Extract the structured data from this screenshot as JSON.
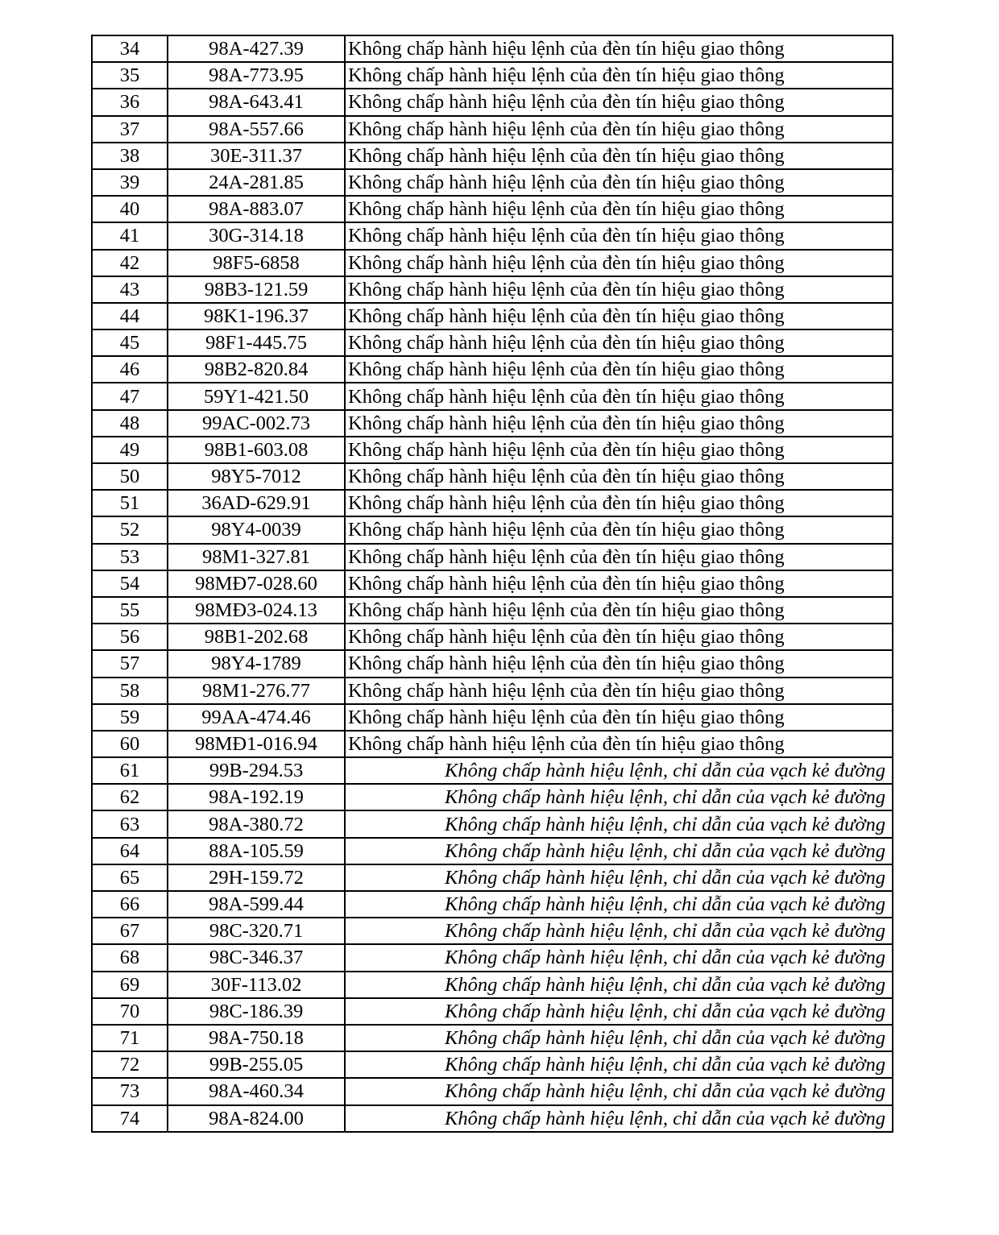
{
  "violations": {
    "signal": "Không chấp hành hiệu lệnh của đèn tín hiệu giao thông",
    "marking": "Không chấp hành hiệu lệnh, chỉ dẫn của vạch kẻ đường"
  },
  "rows": [
    {
      "no": "34",
      "plate": "98A-427.39",
      "violation": "Không chấp hành hiệu lệnh của đèn tín hiệu giao thông",
      "italic": false
    },
    {
      "no": "35",
      "plate": "98A-773.95",
      "violation": "Không chấp hành hiệu lệnh của đèn tín hiệu giao thông",
      "italic": false
    },
    {
      "no": "36",
      "plate": "98A-643.41",
      "violation": "Không chấp hành hiệu lệnh của đèn tín hiệu giao thông",
      "italic": false
    },
    {
      "no": "37",
      "plate": "98A-557.66",
      "violation": "Không chấp hành hiệu lệnh của đèn tín hiệu giao thông",
      "italic": false
    },
    {
      "no": "38",
      "plate": "30E-311.37",
      "violation": "Không chấp hành hiệu lệnh của đèn tín hiệu giao thông",
      "italic": false
    },
    {
      "no": "39",
      "plate": "24A-281.85",
      "violation": "Không chấp hành hiệu lệnh của đèn tín hiệu giao thông",
      "italic": false
    },
    {
      "no": "40",
      "plate": "98A-883.07",
      "violation": "Không chấp hành hiệu lệnh của đèn tín hiệu giao thông",
      "italic": false
    },
    {
      "no": "41",
      "plate": "30G-314.18",
      "violation": "Không chấp hành hiệu lệnh của đèn tín hiệu giao thông",
      "italic": false
    },
    {
      "no": "42",
      "plate": "98F5-6858",
      "violation": "Không chấp hành hiệu lệnh của đèn tín hiệu giao thông",
      "italic": false
    },
    {
      "no": "43",
      "plate": "98B3-121.59",
      "violation": "Không chấp hành hiệu lệnh của đèn tín hiệu giao thông",
      "italic": false
    },
    {
      "no": "44",
      "plate": "98K1-196.37",
      "violation": "Không chấp hành hiệu lệnh của đèn tín hiệu giao thông",
      "italic": false
    },
    {
      "no": "45",
      "plate": "98F1-445.75",
      "violation": "Không chấp hành hiệu lệnh của đèn tín hiệu giao thông",
      "italic": false
    },
    {
      "no": "46",
      "plate": "98B2-820.84",
      "violation": "Không chấp hành hiệu lệnh của đèn tín hiệu giao thông",
      "italic": false
    },
    {
      "no": "47",
      "plate": "59Y1-421.50",
      "violation": "Không chấp hành hiệu lệnh của đèn tín hiệu giao thông",
      "italic": false
    },
    {
      "no": "48",
      "plate": "99AC-002.73",
      "violation": "Không chấp hành hiệu lệnh của đèn tín hiệu giao thông",
      "italic": false
    },
    {
      "no": "49",
      "plate": "98B1-603.08",
      "violation": "Không chấp hành hiệu lệnh của đèn tín hiệu giao thông",
      "italic": false
    },
    {
      "no": "50",
      "plate": "98Y5-7012",
      "violation": "Không chấp hành hiệu lệnh của đèn tín hiệu giao thông",
      "italic": false
    },
    {
      "no": "51",
      "plate": "36AD-629.91",
      "violation": "Không chấp hành hiệu lệnh của đèn tín hiệu giao thông",
      "italic": false
    },
    {
      "no": "52",
      "plate": "98Y4-0039",
      "violation": "Không chấp hành hiệu lệnh của đèn tín hiệu giao thông",
      "italic": false
    },
    {
      "no": "53",
      "plate": "98M1-327.81",
      "violation": "Không chấp hành hiệu lệnh của đèn tín hiệu giao thông",
      "italic": false
    },
    {
      "no": "54",
      "plate": "98MĐ7-028.60",
      "violation": "Không chấp hành hiệu lệnh của đèn tín hiệu giao thông",
      "italic": false
    },
    {
      "no": "55",
      "plate": "98MĐ3-024.13",
      "violation": "Không chấp hành hiệu lệnh của đèn tín hiệu giao thông",
      "italic": false
    },
    {
      "no": "56",
      "plate": "98B1-202.68",
      "violation": "Không chấp hành hiệu lệnh của đèn tín hiệu giao thông",
      "italic": false
    },
    {
      "no": "57",
      "plate": "98Y4-1789",
      "violation": "Không chấp hành hiệu lệnh của đèn tín hiệu giao thông",
      "italic": false
    },
    {
      "no": "58",
      "plate": "98M1-276.77",
      "violation": "Không chấp hành hiệu lệnh của đèn tín hiệu giao thông",
      "italic": false
    },
    {
      "no": "59",
      "plate": "99AA-474.46",
      "violation": "Không chấp hành hiệu lệnh của đèn tín hiệu giao thông",
      "italic": false
    },
    {
      "no": "60",
      "plate": "98MĐ1-016.94",
      "violation": "Không chấp hành hiệu lệnh của đèn tín hiệu giao thông",
      "italic": false
    },
    {
      "no": "61",
      "plate": "99B-294.53",
      "violation": "Không chấp hành hiệu lệnh, chỉ dẫn của vạch kẻ đường",
      "italic": true
    },
    {
      "no": "62",
      "plate": "98A-192.19",
      "violation": "Không chấp hành hiệu lệnh, chỉ dẫn của vạch kẻ đường",
      "italic": true
    },
    {
      "no": "63",
      "plate": "98A-380.72",
      "violation": "Không chấp hành hiệu lệnh, chỉ dẫn của vạch kẻ đường",
      "italic": true
    },
    {
      "no": "64",
      "plate": "88A-105.59",
      "violation": "Không chấp hành hiệu lệnh, chỉ dẫn của vạch kẻ đường",
      "italic": true
    },
    {
      "no": "65",
      "plate": "29H-159.72",
      "violation": "Không chấp hành hiệu lệnh, chỉ dẫn của vạch kẻ đường",
      "italic": true
    },
    {
      "no": "66",
      "plate": "98A-599.44",
      "violation": "Không chấp hành hiệu lệnh, chỉ dẫn của vạch kẻ đường",
      "italic": true
    },
    {
      "no": "67",
      "plate": "98C-320.71",
      "violation": "Không chấp hành hiệu lệnh, chỉ dẫn của vạch kẻ đường",
      "italic": true
    },
    {
      "no": "68",
      "plate": "98C-346.37",
      "violation": "Không chấp hành hiệu lệnh, chỉ dẫn của vạch kẻ đường",
      "italic": true
    },
    {
      "no": "69",
      "plate": "30F-113.02",
      "violation": "Không chấp hành hiệu lệnh, chỉ dẫn của vạch kẻ đường",
      "italic": true
    },
    {
      "no": "70",
      "plate": "98C-186.39",
      "violation": "Không chấp hành hiệu lệnh, chỉ dẫn của vạch kẻ đường",
      "italic": true
    },
    {
      "no": "71",
      "plate": "98A-750.18",
      "violation": "Không chấp hành hiệu lệnh, chỉ dẫn của vạch kẻ đường",
      "italic": true
    },
    {
      "no": "72",
      "plate": "99B-255.05",
      "violation": "Không chấp hành hiệu lệnh, chỉ dẫn của vạch kẻ đường",
      "italic": true
    },
    {
      "no": "73",
      "plate": "98A-460.34",
      "violation": "Không chấp hành hiệu lệnh, chỉ dẫn của vạch kẻ đường",
      "italic": true
    },
    {
      "no": "74",
      "plate": "98A-824.00",
      "violation": "Không chấp hành hiệu lệnh, chỉ dẫn của vạch kẻ đường",
      "italic": true
    }
  ]
}
